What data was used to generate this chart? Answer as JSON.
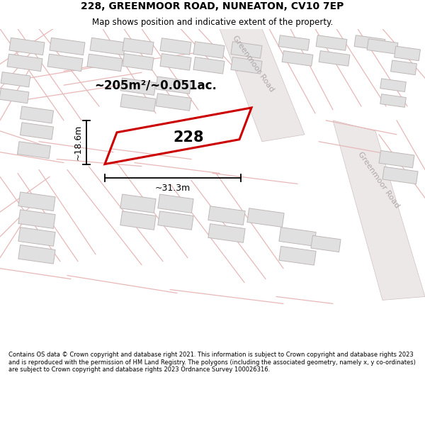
{
  "title_line1": "228, GREENMOOR ROAD, NUNEATON, CV10 7EP",
  "title_line2": "Map shows position and indicative extent of the property.",
  "footer_text": "Contains OS data © Crown copyright and database right 2021. This information is subject to Crown copyright and database rights 2023 and is reproduced with the permission of HM Land Registry. The polygons (including the associated geometry, namely x, y co-ordinates) are subject to Crown copyright and database rights 2023 Ordnance Survey 100026316.",
  "background_color": "#ffffff",
  "map_bg_color": "#f2eded",
  "building_fill_color": "#e0e0e0",
  "building_outline_color": "#c0b8b8",
  "road_line_color": "#e8b8b8",
  "highlight_color": "#cc0000",
  "road_label_color": "#b0a8a8",
  "area_text": "~205m²/~0.051ac.",
  "label_228": "228",
  "dim_width": "~31.3m",
  "dim_height": "~18.6m",
  "road_label_top": "Greenmoor Road",
  "road_label_right": "Greenmoor Road"
}
